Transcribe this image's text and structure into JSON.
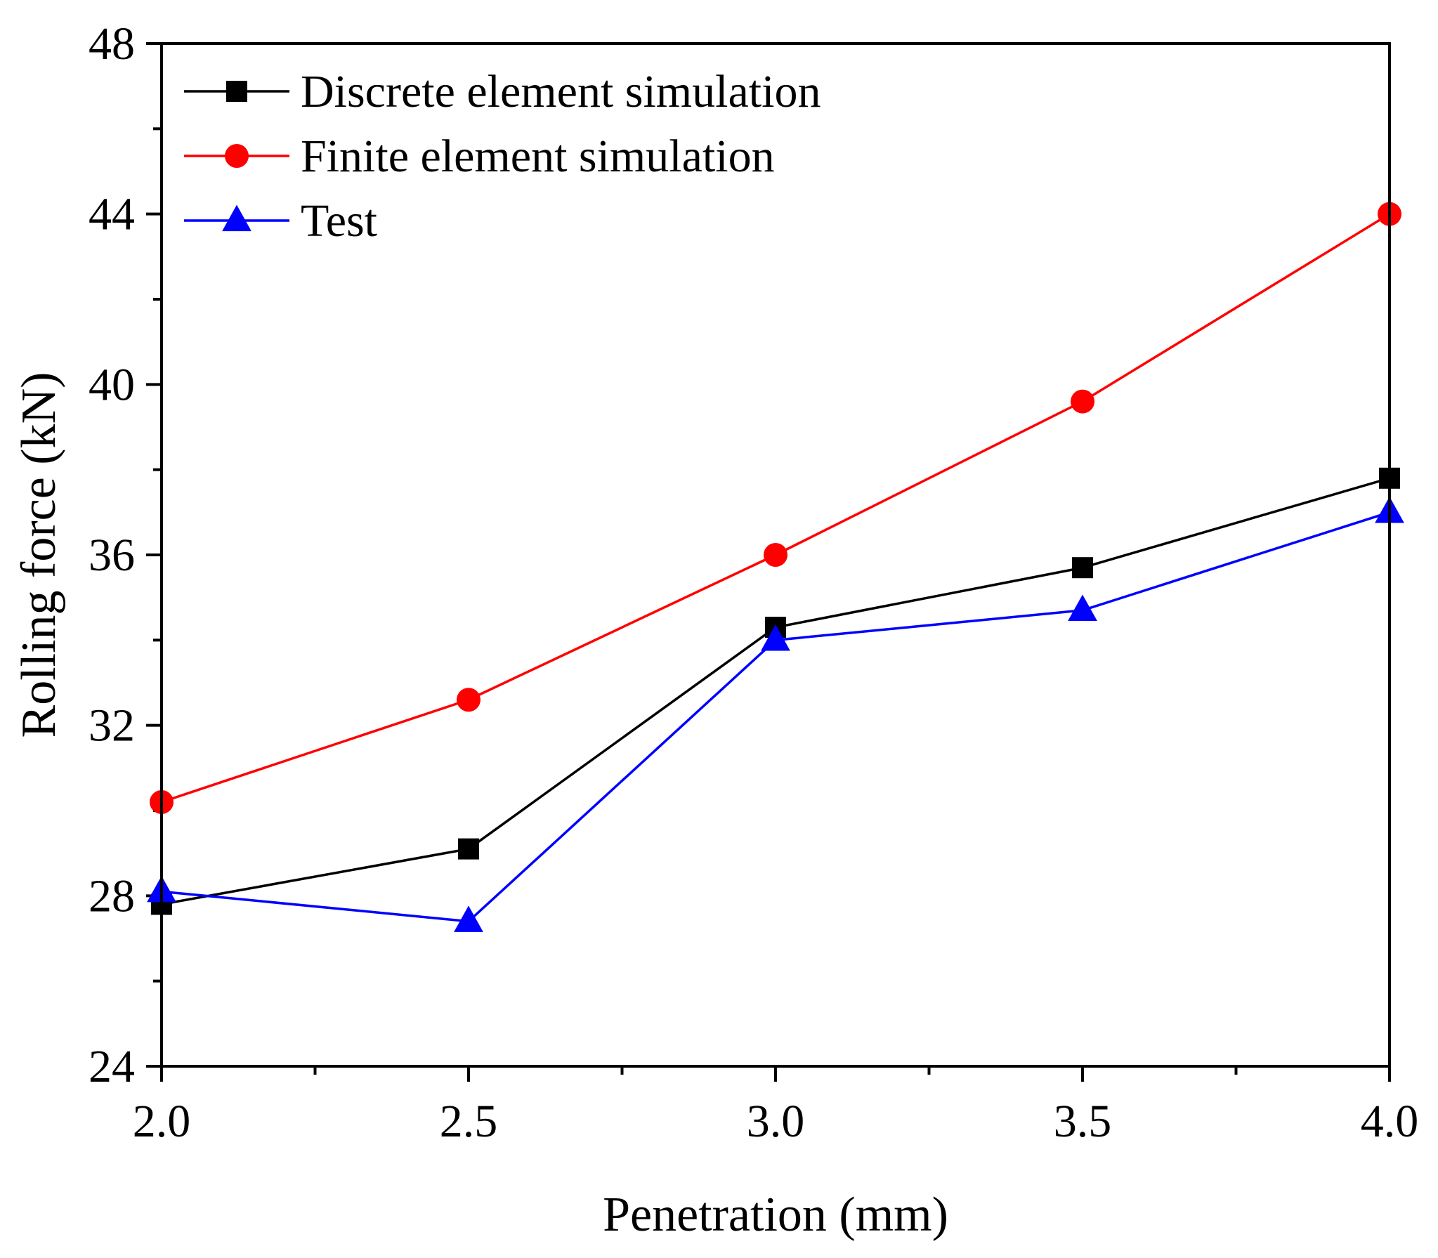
{
  "chart_data": {
    "type": "line",
    "title": "",
    "xlabel": "Penetration (mm)",
    "ylabel": "Rolling force (kN)",
    "xlim": [
      2.0,
      4.0
    ],
    "ylim": [
      24,
      48
    ],
    "xticks": [
      "2.0",
      "2.5",
      "3.0",
      "3.5",
      "4.0"
    ],
    "yticks": [
      "24",
      "28",
      "32",
      "36",
      "40",
      "44",
      "48"
    ],
    "grid": false,
    "legend_position": "top-left",
    "x": [
      2.0,
      2.5,
      3.0,
      3.5,
      4.0
    ],
    "series": [
      {
        "name": "Discrete element simulation",
        "marker": "square",
        "color": "#000000",
        "values": [
          27.8,
          29.1,
          34.3,
          35.7,
          37.8
        ]
      },
      {
        "name": "Finite element simulation",
        "marker": "circle",
        "color": "#ff0000",
        "values": [
          30.2,
          32.6,
          36.0,
          39.6,
          44.0
        ]
      },
      {
        "name": "Test",
        "marker": "triangle",
        "color": "#0000ff",
        "values": [
          28.1,
          27.4,
          34.0,
          34.7,
          37.0
        ]
      }
    ]
  }
}
